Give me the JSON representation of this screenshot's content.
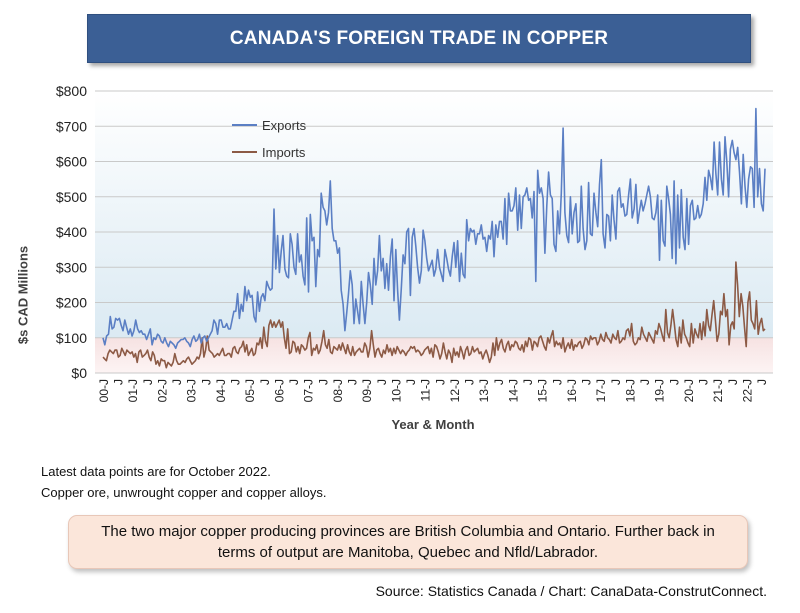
{
  "title": "CANADA'S FOREIGN TRADE IN COPPER",
  "notes": {
    "line1": "Latest data points are for October 2022.",
    "line2": "Copper ore, unwrought copper and copper alloys."
  },
  "callout": "The two major copper producing provinces are British Columbia and Ontario. Further back in terms of output are Manitoba, Quebec and Nfld/Labrador.",
  "source": "Source: Statistics Canada / Chart: CanaData-ConstrutConnect.",
  "colors": {
    "exports": "#5b7fc4",
    "imports": "#8c5a45",
    "grid": "#c9c9c9"
  },
  "chart_data": {
    "type": "line",
    "xlabel": "Year & Month",
    "ylabel": "$s CAD Millions",
    "ylim": [
      0,
      800
    ],
    "yticks": [
      "$0",
      "$100",
      "$200",
      "$300",
      "$400",
      "$500",
      "$600",
      "$700",
      "$800"
    ],
    "xticks": [
      "00-J",
      "J",
      "01-J",
      "J",
      "02-J",
      "J",
      "03-J",
      "J",
      "04-J",
      "J",
      "05-J",
      "J",
      "06-J",
      "J",
      "07-J",
      "J",
      "08-J",
      "J",
      "09-J",
      "J",
      "10-J",
      "J",
      "11-J",
      "J",
      "12-J",
      "J",
      "13-J",
      "J",
      "14-J",
      "J",
      "15-J",
      "J",
      "16-J",
      "J",
      "17-J",
      "J",
      "18-J",
      "J",
      "19-J",
      "J",
      "20-J",
      "J",
      "21-J",
      "J",
      "22-J",
      "J"
    ],
    "legend_position": "top-left",
    "x_start": "2000-01",
    "x_end": "2022-10",
    "series": [
      {
        "name": "Exports",
        "values": [
          100,
          80,
          105,
          110,
          160,
          125,
          130,
          155,
          150,
          155,
          135,
          120,
          150,
          130,
          110,
          125,
          105,
          120,
          150,
          125,
          115,
          120,
          110,
          110,
          95,
          110,
          125,
          80,
          100,
          95,
          110,
          105,
          90,
          85,
          100,
          85,
          75,
          90,
          85,
          80,
          70,
          85,
          90,
          95,
          95,
          100,
          90,
          85,
          75,
          95,
          105,
          90,
          95,
          110,
          85,
          100,
          105,
          90,
          100,
          110,
          120,
          150,
          140,
          110,
          150,
          150,
          130,
          130,
          140,
          125,
          125,
          150,
          175,
          175,
          225,
          155,
          195,
          175,
          245,
          205,
          235,
          215,
          220,
          160,
          145,
          230,
          175,
          215,
          225,
          205,
          260,
          245,
          235,
          240,
          465,
          295,
          390,
          285,
          345,
          390,
          295,
          275,
          270,
          395,
          365,
          300,
          280,
          395,
          315,
          335,
          275,
          250,
          440,
          230,
          450,
          375,
          385,
          245,
          350,
          330,
          510,
          470,
          460,
          420,
          455,
          545,
          410,
          375,
          375,
          340,
          355,
          235,
          195,
          120,
          170,
          225,
          290,
          250,
          140,
          210,
          175,
          140,
          260,
          195,
          140,
          200,
          285,
          250,
          195,
          325,
          250,
          290,
          390,
          290,
          325,
          240,
          310,
          235,
          330,
          380,
          205,
          350,
          235,
          150,
          240,
          335,
          310,
          400,
          410,
          220,
          385,
          410,
          360,
          300,
          255,
          290,
          405,
          375,
          325,
          290,
          305,
          320,
          275,
          295,
          350,
          300,
          280,
          260,
          350,
          325,
          295,
          275,
          330,
          370,
          300,
          375,
          260,
          340,
          280,
          270,
          435,
          375,
          410,
          400,
          405,
          365,
          395,
          395,
          420,
          380,
          385,
          345,
          390,
          380,
          430,
          330,
          420,
          385,
          430,
          430,
          380,
          495,
          365,
          510,
          460,
          460,
          475,
          525,
          405,
          505,
          410,
          500,
          505,
          525,
          490,
          495,
          440,
          515,
          260,
          575,
          510,
          525,
          495,
          340,
          475,
          570,
          505,
          495,
          365,
          345,
          460,
          395,
          510,
          695,
          455,
          390,
          370,
          500,
          395,
          455,
          480,
          370,
          375,
          530,
          410,
          350,
          375,
          540,
          395,
          390,
          510,
          455,
          415,
          535,
          605,
          395,
          355,
          450,
          445,
          375,
          505,
          435,
          380,
          515,
          525,
          470,
          480,
          445,
          450,
          505,
          550,
          440,
          465,
          535,
          425,
          460,
          490,
          460,
          480,
          505,
          530,
          500,
          440,
          435,
          455,
          505,
          320,
          490,
          375,
          360,
          530,
          495,
          450,
          325,
          545,
          310,
          505,
          355,
          520,
          385,
          350,
          495,
          365,
          475,
          490,
          435,
          440,
          475,
          440,
          450,
          480,
          555,
          490,
          575,
          555,
          520,
          655,
          565,
          505,
          655,
          550,
          505,
          670,
          600,
          500,
          635,
          660,
          625,
          605,
          640,
          570,
          480,
          620,
          530,
          470,
          550,
          585,
          580,
          470,
          750,
          500,
          580,
          480,
          460,
          580
        ]
      },
      {
        "name": "Imports",
        "values": [
          45,
          40,
          35,
          55,
          65,
          60,
          55,
          65,
          65,
          45,
          50,
          70,
          60,
          50,
          65,
          60,
          55,
          60,
          45,
          55,
          30,
          60,
          65,
          45,
          50,
          55,
          65,
          45,
          35,
          60,
          50,
          25,
          35,
          20,
          40,
          35,
          35,
          15,
          30,
          25,
          20,
          30,
          55,
          35,
          25,
          25,
          30,
          35,
          30,
          40,
          45,
          35,
          25,
          30,
          35,
          45,
          40,
          55,
          100,
          45,
          65,
          105,
          65,
          60,
          55,
          45,
          50,
          55,
          50,
          60,
          70,
          50,
          50,
          55,
          55,
          45,
          70,
          75,
          60,
          55,
          70,
          75,
          90,
          60,
          80,
          50,
          60,
          70,
          50,
          55,
          85,
          80,
          100,
          70,
          130,
          90,
          75,
          135,
          150,
          130,
          145,
          130,
          140,
          150,
          130,
          145,
          100,
          70,
          125,
          55,
          60,
          90,
          85,
          60,
          75,
          55,
          80,
          75,
          65,
          70,
          100,
          115,
          50,
          70,
          65,
          80,
          55,
          65,
          90,
          120,
          80,
          70,
          95,
          60,
          55,
          75,
          70,
          65,
          80,
          65,
          85,
          70,
          55,
          80,
          60,
          50,
          75,
          50,
          60,
          65,
          70,
          60,
          60,
          85,
          75,
          45,
          70,
          120,
          80,
          45,
          65,
          70,
          55,
          45,
          65,
          55,
          80,
          60,
          70,
          50,
          70,
          55,
          75,
          65,
          55,
          65,
          60,
          50,
          60,
          65,
          75,
          70,
          75,
          60,
          65,
          60,
          50,
          55,
          65,
          70,
          75,
          55,
          70,
          45,
          80,
          75,
          60,
          40,
          55,
          85,
          60,
          40,
          65,
          55,
          30,
          70,
          50,
          60,
          45,
          75,
          60,
          40,
          65,
          75,
          50,
          55,
          75,
          60,
          65,
          70,
          55,
          60,
          40,
          55,
          65,
          50,
          30,
          45,
          85,
          50,
          100,
          65,
          85,
          95,
          70,
          60,
          80,
          90,
          65,
          80,
          75,
          90,
          85,
          70,
          65,
          80,
          60,
          90,
          75,
          100,
          95,
          65,
          90,
          85,
          75,
          100,
          105,
          90,
          75,
          65,
          100,
          85,
          105,
          120,
          75,
          90,
          80,
          85,
          70,
          100,
          60,
          75,
          85,
          70,
          95,
          65,
          80,
          75,
          85,
          90,
          70,
          80,
          100,
          95,
          80,
          105,
          95,
          100,
          100,
          80,
          90,
          110,
          95,
          90,
          115,
          100,
          95,
          85,
          110,
          100,
          95,
          120,
          85,
          90,
          100,
          95,
          120,
          125,
          105,
          140,
          90,
          80,
          85,
          100,
          95,
          130,
          110,
          100,
          90,
          115,
          105,
          95,
          85,
          120,
          110,
          140,
          125,
          105,
          90,
          180,
          115,
          100,
          135,
          180,
          140,
          95,
          75,
          130,
          85,
          150,
          110,
          100,
          85,
          75,
          140,
          85,
          125,
          110,
          100,
          140,
          95,
          145,
          105,
          180,
          135,
          120,
          165,
          205,
          150,
          90,
          110,
          175,
          165,
          225,
          160,
          180,
          80,
          135,
          145,
          125,
          315,
          250,
          160,
          225,
          190,
          130,
          75,
          200,
          230,
          150,
          140,
          125,
          205,
          110,
          140,
          155,
          120,
          125
        ]
      }
    ]
  }
}
